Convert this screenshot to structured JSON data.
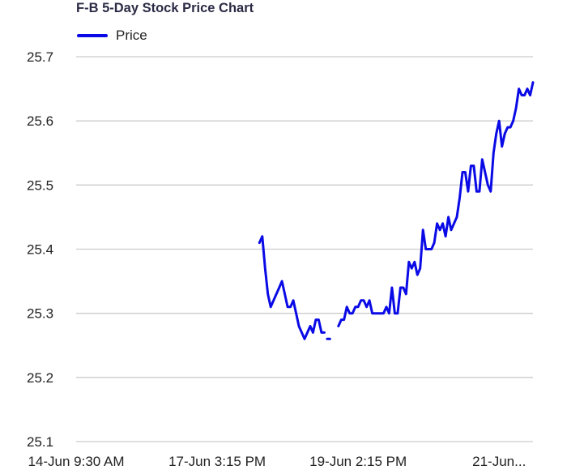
{
  "chart_data": {
    "type": "line",
    "title": "F-B 5-Day Stock Price Chart",
    "xlabel": "",
    "ylabel": "",
    "ylim": [
      25.1,
      25.7
    ],
    "yticks": [
      25.1,
      25.2,
      25.3,
      25.4,
      25.5,
      25.6,
      25.7
    ],
    "ytick_labels": [
      "25.1",
      "25.2",
      "25.3",
      "25.4",
      "25.5",
      "25.6",
      "25.7"
    ],
    "xtick_labels": [
      "14-Jun 9:30 AM",
      "17-Jun 3:15 PM",
      "19-Jun 2:15 PM",
      "21-Jun..."
    ],
    "xtick_positions": [
      0,
      50,
      100,
      150
    ],
    "xlim": [
      0,
      162
    ],
    "grid": true,
    "legend_position": "top-left",
    "series": [
      {
        "name": "Price",
        "color": "#0a0ae6",
        "segments": [
          {
            "x": [
              65,
              66,
              67,
              68,
              69,
              70,
              71,
              72,
              73,
              74,
              75,
              76,
              77,
              78,
              79,
              80,
              81,
              82,
              83,
              84,
              85,
              86,
              87,
              88
            ],
            "y": [
              25.41,
              25.42,
              25.37,
              25.33,
              25.31,
              25.32,
              25.33,
              25.34,
              25.35,
              25.33,
              25.31,
              25.31,
              25.32,
              25.3,
              25.28,
              25.27,
              25.26,
              25.27,
              25.28,
              25.27,
              25.29,
              25.29,
              25.27,
              25.27
            ]
          },
          {
            "x": [
              89,
              90
            ],
            "y": [
              25.26,
              25.26
            ]
          },
          {
            "x": [
              93,
              94,
              95,
              96,
              97,
              98,
              99,
              100,
              101,
              102,
              103,
              104,
              105,
              106,
              107,
              108,
              109,
              110,
              111,
              112,
              113,
              114,
              115,
              116,
              117,
              118,
              119,
              120,
              121,
              122,
              123,
              124,
              125,
              126,
              127,
              128,
              129,
              130,
              131,
              132,
              133,
              134,
              135,
              136,
              137,
              138,
              139,
              140,
              141,
              142,
              143,
              144,
              145,
              146,
              147,
              148,
              149,
              150,
              151,
              152,
              153,
              154,
              155,
              156,
              157,
              158,
              159,
              160,
              161,
              162
            ],
            "y": [
              25.28,
              25.29,
              25.29,
              25.31,
              25.3,
              25.3,
              25.31,
              25.31,
              25.32,
              25.32,
              25.31,
              25.32,
              25.3,
              25.3,
              25.3,
              25.3,
              25.3,
              25.31,
              25.3,
              25.34,
              25.3,
              25.3,
              25.34,
              25.34,
              25.33,
              25.38,
              25.37,
              25.38,
              25.36,
              25.37,
              25.43,
              25.4,
              25.4,
              25.4,
              25.41,
              25.44,
              25.43,
              25.44,
              25.42,
              25.45,
              25.43,
              25.44,
              25.45,
              25.48,
              25.52,
              25.52,
              25.49,
              25.53,
              25.53,
              25.49,
              25.49,
              25.54,
              25.52,
              25.5,
              25.49,
              25.55,
              25.58,
              25.6,
              25.56,
              25.58,
              25.59,
              25.59,
              25.6,
              25.62,
              25.65,
              25.64,
              25.64,
              25.65,
              25.64,
              25.66
            ]
          }
        ]
      }
    ]
  }
}
